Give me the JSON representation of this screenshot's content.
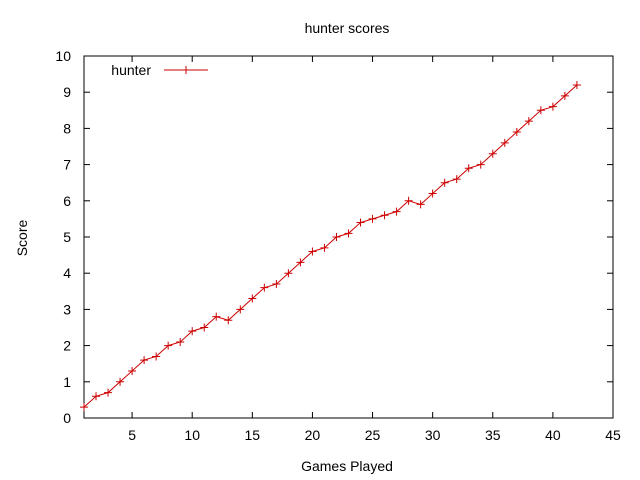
{
  "chart_data": {
    "type": "line",
    "title": "hunter scores",
    "xlabel": "Games Played",
    "ylabel": "Score",
    "xlim": [
      1,
      45
    ],
    "ylim": [
      0,
      10
    ],
    "x_ticks": [
      5,
      10,
      15,
      20,
      25,
      30,
      35,
      40,
      45
    ],
    "y_ticks": [
      0,
      1,
      2,
      3,
      4,
      5,
      6,
      7,
      8,
      9,
      10
    ],
    "grid": false,
    "legend_position": "top-left",
    "series": [
      {
        "name": "hunter",
        "color": "#cc0000",
        "marker": "plus",
        "x": [
          1,
          2,
          3,
          4,
          5,
          6,
          7,
          8,
          9,
          10,
          11,
          12,
          13,
          14,
          15,
          16,
          17,
          18,
          19,
          20,
          21,
          22,
          23,
          24,
          25,
          26,
          27,
          28,
          29,
          30,
          31,
          32,
          33,
          34,
          35,
          36,
          37,
          38,
          39,
          40,
          41,
          42
        ],
        "y": [
          0.3,
          0.6,
          0.7,
          1.0,
          1.3,
          1.6,
          1.7,
          2.0,
          2.1,
          2.4,
          2.5,
          2.8,
          2.7,
          3.0,
          3.3,
          3.6,
          3.7,
          4.0,
          4.3,
          4.6,
          4.7,
          5.0,
          5.1,
          5.4,
          5.5,
          5.6,
          5.7,
          6.0,
          5.9,
          6.2,
          6.5,
          6.6,
          6.9,
          7.0,
          7.3,
          7.6,
          7.9,
          8.2,
          8.5,
          8.6,
          8.9,
          9.2
        ]
      }
    ]
  }
}
